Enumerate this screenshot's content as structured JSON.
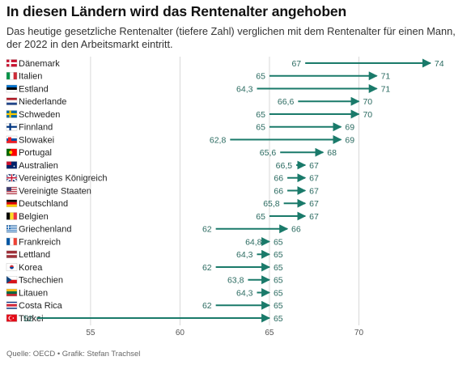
{
  "title": "In diesen Ländern wird das Rentenalter angehoben",
  "subtitle": "Das heutige gesetzliche Rentenalter (tiefere Zahl) verglichen mit dem Rentenalter für einen Mann, der 2022 in den Arbeitsmarkt eintritt.",
  "source": "Quelle: OECD • Grafik: Stefan Trachsel",
  "colors": {
    "arrow": "#1a7a6a",
    "grid": "#d8d8d8",
    "label": "#2a6a60",
    "text": "#222222"
  },
  "chart_data": {
    "type": "arrow",
    "x_ticks": [
      55,
      60,
      65,
      70
    ],
    "xlim": [
      50.3,
      75
    ],
    "grid": true,
    "rows": [
      {
        "country": "Dänemark",
        "flag": "dk",
        "from": 67,
        "to": 74,
        "from_label": "67",
        "to_label": "74"
      },
      {
        "country": "Italien",
        "flag": "it",
        "from": 65,
        "to": 71,
        "from_label": "65",
        "to_label": "71"
      },
      {
        "country": "Estland",
        "flag": "ee",
        "from": 64.3,
        "to": 71,
        "from_label": "64,3",
        "to_label": "71"
      },
      {
        "country": "Niederlande",
        "flag": "nl",
        "from": 66.6,
        "to": 70,
        "from_label": "66,6",
        "to_label": "70"
      },
      {
        "country": "Schweden",
        "flag": "se",
        "from": 65,
        "to": 70,
        "from_label": "65",
        "to_label": "70"
      },
      {
        "country": "Finnland",
        "flag": "fi",
        "from": 65,
        "to": 69,
        "from_label": "65",
        "to_label": "69"
      },
      {
        "country": "Slowakei",
        "flag": "sk",
        "from": 62.8,
        "to": 69,
        "from_label": "62,8",
        "to_label": "69"
      },
      {
        "country": "Portugal",
        "flag": "pt",
        "from": 65.6,
        "to": 68,
        "from_label": "65,6",
        "to_label": "68"
      },
      {
        "country": "Australien",
        "flag": "au",
        "from": 66.5,
        "to": 67,
        "from_label": "66,5",
        "to_label": "67"
      },
      {
        "country": "Vereinigtes Königreich",
        "flag": "gb",
        "from": 66,
        "to": 67,
        "from_label": "66",
        "to_label": "67"
      },
      {
        "country": "Vereinigte Staaten",
        "flag": "us",
        "from": 66,
        "to": 67,
        "from_label": "66",
        "to_label": "67"
      },
      {
        "country": "Deutschland",
        "flag": "de",
        "from": 65.8,
        "to": 67,
        "from_label": "65,8",
        "to_label": "67"
      },
      {
        "country": "Belgien",
        "flag": "be",
        "from": 65,
        "to": 67,
        "from_label": "65",
        "to_label": "67"
      },
      {
        "country": "Griechenland",
        "flag": "gr",
        "from": 62,
        "to": 66,
        "from_label": "62",
        "to_label": "66"
      },
      {
        "country": "Frankreich",
        "flag": "fr",
        "from": 64.8,
        "to": 65,
        "from_label": "64,8",
        "to_label": "65"
      },
      {
        "country": "Lettland",
        "flag": "lv",
        "from": 64.3,
        "to": 65,
        "from_label": "64,3",
        "to_label": "65"
      },
      {
        "country": "Korea",
        "flag": "kr",
        "from": 62,
        "to": 65,
        "from_label": "62",
        "to_label": "65"
      },
      {
        "country": "Tschechien",
        "flag": "cz",
        "from": 63.8,
        "to": 65,
        "from_label": "63,8",
        "to_label": "65"
      },
      {
        "country": "Litauen",
        "flag": "lt",
        "from": 64.3,
        "to": 65,
        "from_label": "64,3",
        "to_label": "65"
      },
      {
        "country": "Costa Rica",
        "flag": "cr",
        "from": 62,
        "to": 65,
        "from_label": "62",
        "to_label": "65"
      },
      {
        "country": "Türkei",
        "flag": "tr",
        "from": 52,
        "to": 65,
        "from_label": "52",
        "to_label": "65"
      }
    ]
  }
}
